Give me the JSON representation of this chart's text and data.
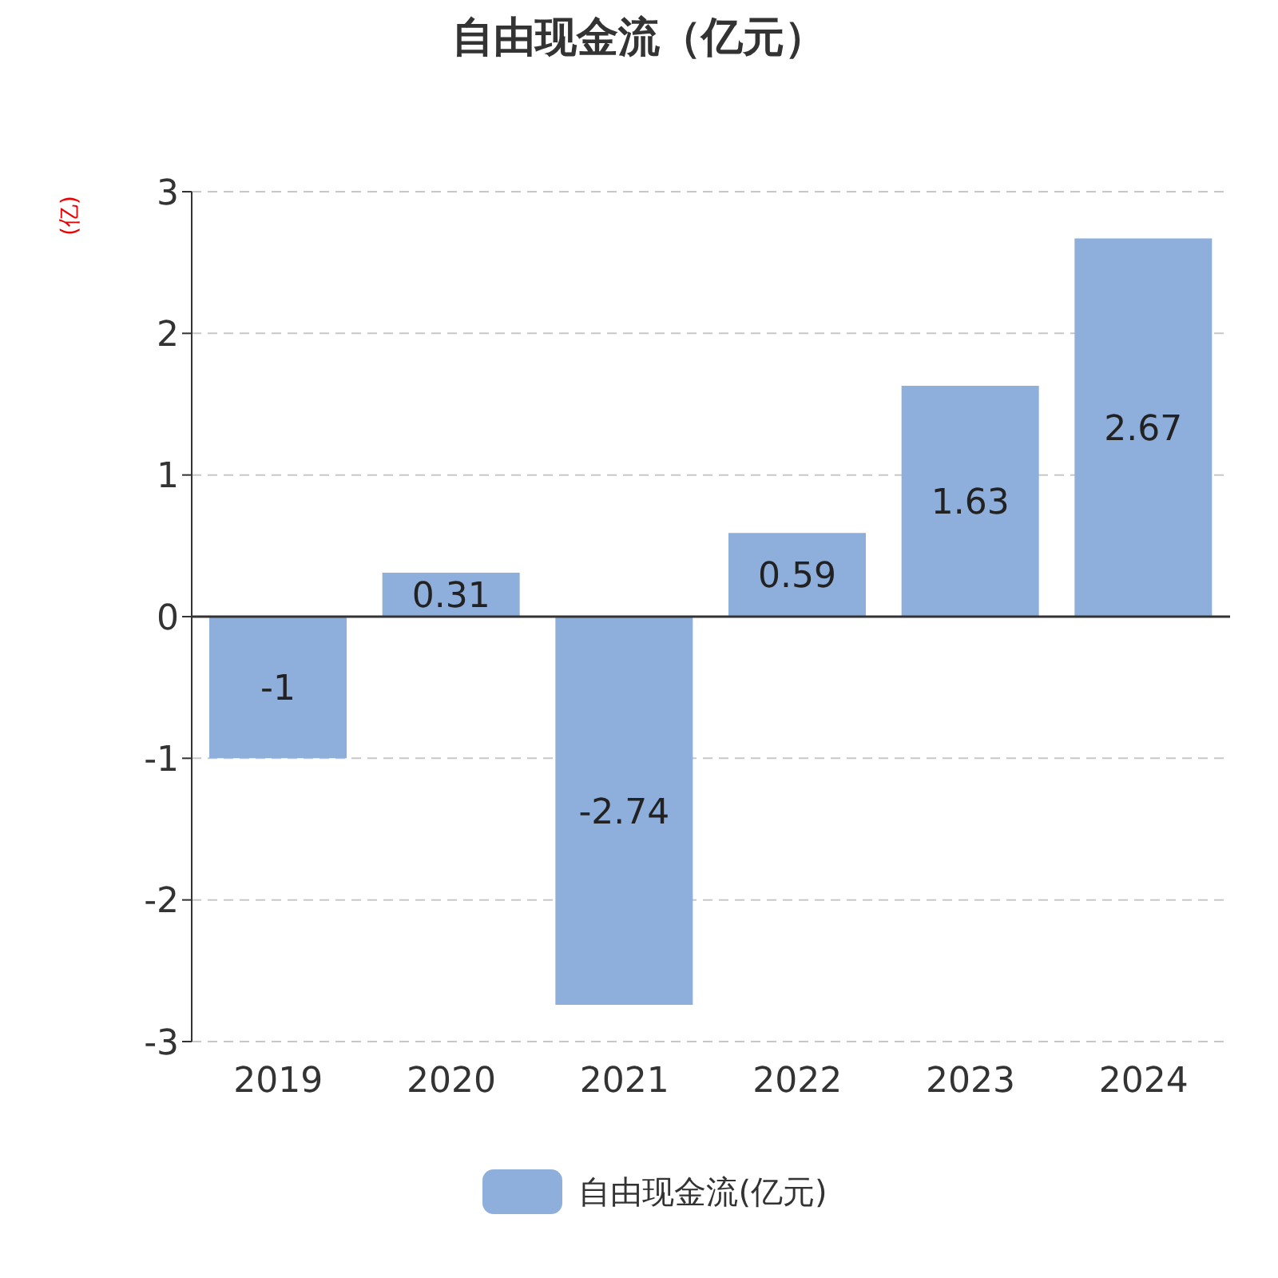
{
  "chart_data": {
    "type": "bar",
    "title": "自由现金流（亿元）",
    "ylabel": "(亿)",
    "categories": [
      "2019",
      "2020",
      "2021",
      "2022",
      "2023",
      "2024"
    ],
    "series": [
      {
        "name": "自由现金流(亿元)",
        "color": "#8eaedb",
        "values": [
          -1,
          0.31,
          -2.74,
          0.59,
          1.63,
          2.67
        ]
      }
    ],
    "ylim": [
      -3,
      3
    ],
    "yticks": [
      -3,
      -2,
      -1,
      0,
      1,
      2,
      3
    ],
    "grid": "y",
    "legend": "bottom",
    "data_labels": true
  }
}
